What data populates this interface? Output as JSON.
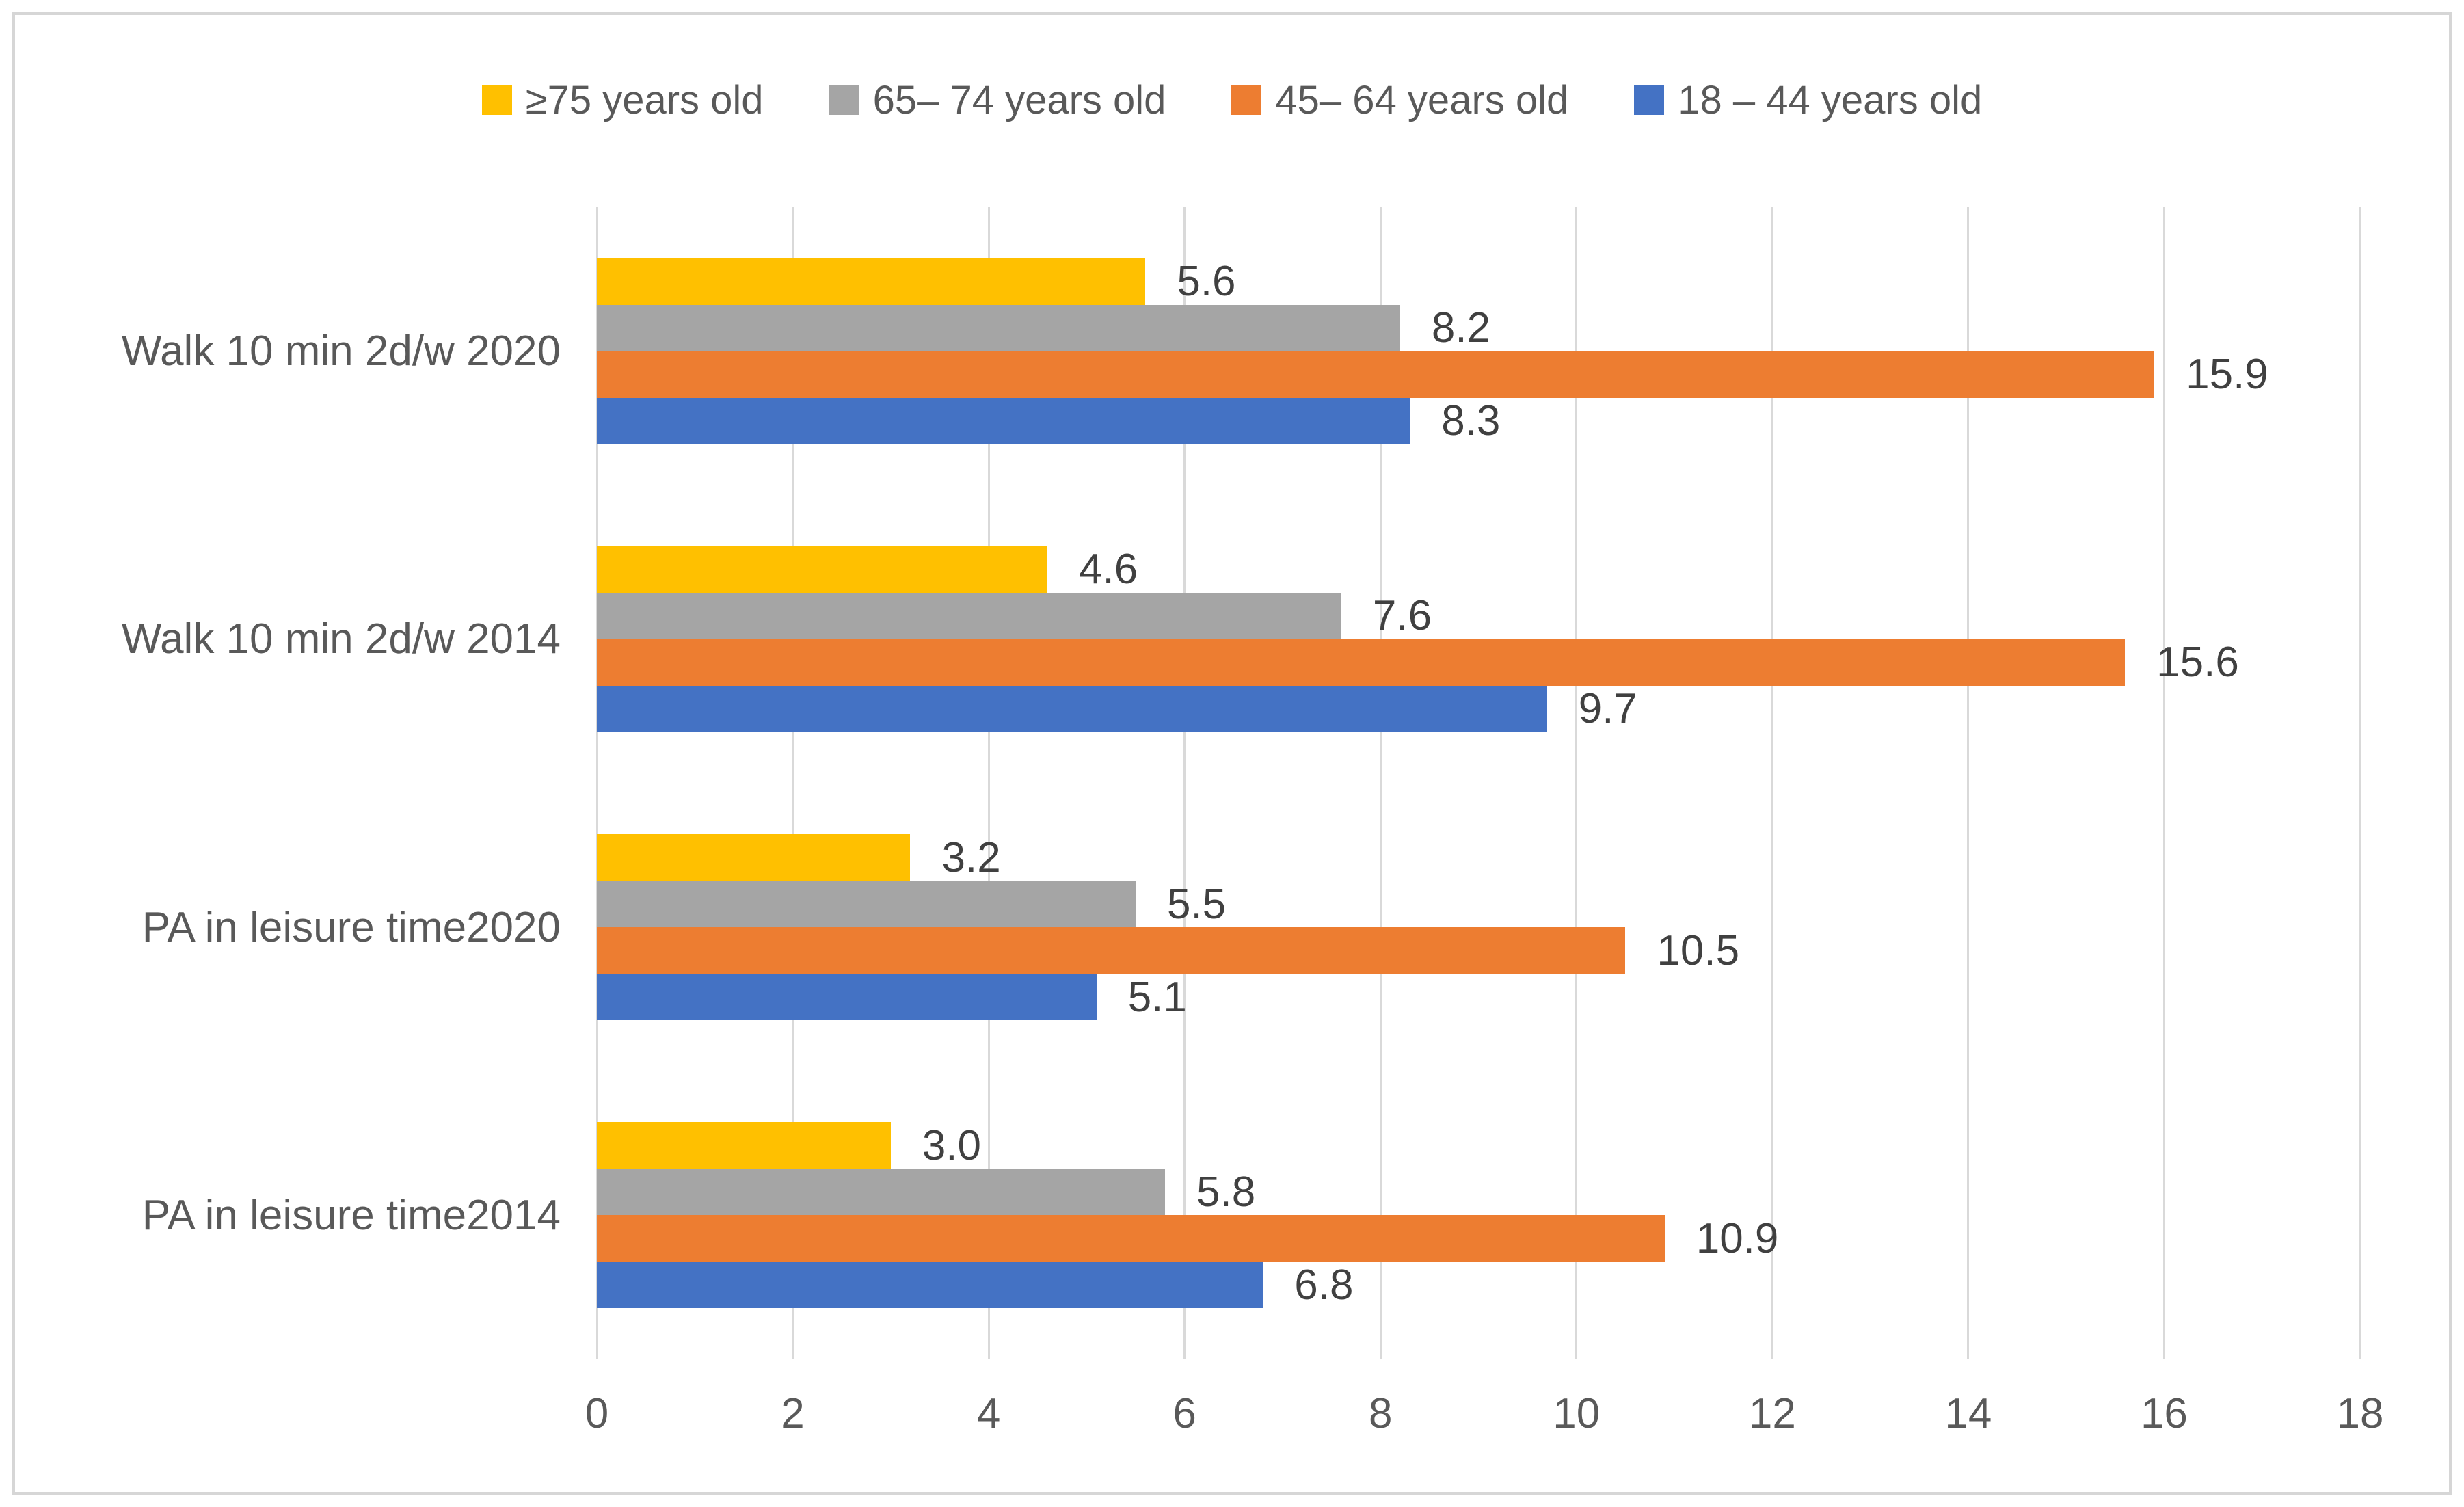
{
  "chart_data": {
    "type": "bar",
    "orientation": "horizontal",
    "title": "",
    "xlabel": "",
    "ylabel": "",
    "categories": [
      "Walk 10 min 2d/w 2020",
      "Walk 10 min 2d/w 2014",
      "PA in leisure time2020",
      "PA in leisure time2014"
    ],
    "series": [
      {
        "name": "≥75 years old",
        "color": "#FFC000",
        "values": [
          5.6,
          4.6,
          3.2,
          3.0
        ]
      },
      {
        "name": "65– 74 years old",
        "color": "#A5A5A5",
        "values": [
          8.2,
          7.6,
          5.5,
          5.8
        ]
      },
      {
        "name": "45– 64 years old",
        "color": "#ED7D31",
        "values": [
          15.9,
          15.6,
          10.5,
          10.9
        ]
      },
      {
        "name": "18 – 44 years old",
        "color": "#4472C4",
        "values": [
          8.3,
          9.7,
          5.1,
          6.8
        ]
      }
    ],
    "xlim": [
      0,
      18
    ],
    "xticks": [
      0,
      2,
      4,
      6,
      8,
      10,
      12,
      14,
      16,
      18
    ],
    "grid": true,
    "legend_position": "top",
    "data_labels": true,
    "value_format_decimals": 1
  },
  "colors": {
    "background": "#FFFFFF",
    "frame_border": "#D6D6D6",
    "gridline": "#D9D9D9",
    "axis_text": "#595959",
    "data_label_text": "#404040"
  }
}
